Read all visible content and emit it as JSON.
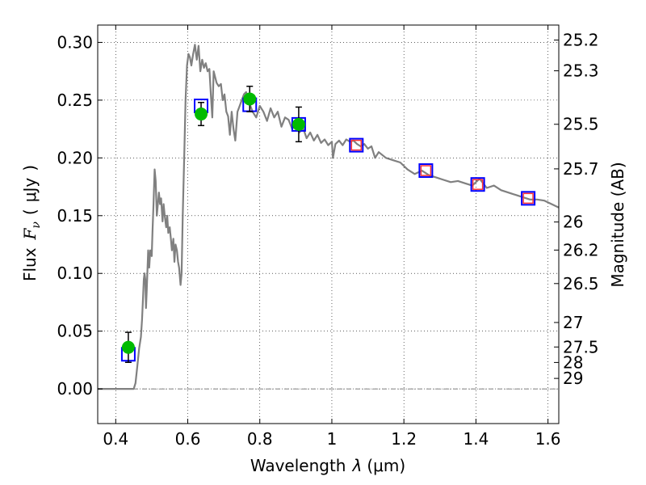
{
  "chart_data": {
    "type": "scatter",
    "xlabel": "Wavelength",
    "xlabel_symbol": "λ",
    "xlabel_unit": "(μm)",
    "ylabel": "Flux",
    "ylabel_symbol": "F",
    "ylabel_symbol_sub": "ν",
    "ylabel_unit_open": "(",
    "ylabel_unit": "μJy",
    "ylabel_unit_close": ")",
    "y2label": "Magnitude (AB)",
    "xlim": [
      0.35,
      1.63
    ],
    "ylim": [
      -0.03,
      0.315
    ],
    "grid": true,
    "xticks": [
      0.4,
      0.6,
      0.8,
      1.0,
      1.2,
      1.4,
      1.6
    ],
    "xtick_labels": [
      "0.4",
      "0.6",
      "0.8",
      "1",
      "1.2",
      "1.4",
      "1.6"
    ],
    "yticks": [
      0.0,
      0.05,
      0.1,
      0.15,
      0.2,
      0.25,
      0.3
    ],
    "ytick_labels": [
      "0.00",
      "0.05",
      "0.10",
      "0.15",
      "0.20",
      "0.25",
      "0.30"
    ],
    "mag_ticks": [
      {
        "label": "25.2",
        "flux": 0.302
      },
      {
        "label": "25.3",
        "flux": 0.2754
      },
      {
        "label": "25.5",
        "flux": 0.2291
      },
      {
        "label": "25.7",
        "flux": 0.1905
      },
      {
        "label": "26",
        "flux": 0.1445
      },
      {
        "label": "26.2",
        "flux": 0.1202
      },
      {
        "label": "26.5",
        "flux": 0.0912
      },
      {
        "label": "27",
        "flux": 0.0575
      },
      {
        "label": "27.5",
        "flux": 0.0363
      },
      {
        "label": "28",
        "flux": 0.0229
      },
      {
        "label": "29",
        "flux": 0.0091
      }
    ],
    "series": [
      {
        "kind": "model_sed",
        "color": "#808080",
        "x": [
          0.35,
          0.45,
          0.455,
          0.46,
          0.465,
          0.47,
          0.473,
          0.476,
          0.478,
          0.48,
          0.482,
          0.484,
          0.486,
          0.49,
          0.493,
          0.496,
          0.5,
          0.502,
          0.505,
          0.508,
          0.511,
          0.514,
          0.517,
          0.52,
          0.523,
          0.526,
          0.53,
          0.533,
          0.536,
          0.54,
          0.543,
          0.546,
          0.55,
          0.553,
          0.556,
          0.56,
          0.563,
          0.566,
          0.57,
          0.573,
          0.576,
          0.58,
          0.583,
          0.586,
          0.59,
          0.594,
          0.598,
          0.602,
          0.606,
          0.61,
          0.615,
          0.62,
          0.625,
          0.63,
          0.635,
          0.64,
          0.645,
          0.65,
          0.655,
          0.66,
          0.664,
          0.668,
          0.672,
          0.676,
          0.68,
          0.686,
          0.692,
          0.697,
          0.702,
          0.707,
          0.712,
          0.717,
          0.722,
          0.727,
          0.732,
          0.738,
          0.744,
          0.75,
          0.756,
          0.762,
          0.768,
          0.774,
          0.78,
          0.79,
          0.8,
          0.81,
          0.82,
          0.83,
          0.84,
          0.85,
          0.86,
          0.87,
          0.88,
          0.89,
          0.9,
          0.91,
          0.92,
          0.93,
          0.94,
          0.95,
          0.96,
          0.97,
          0.98,
          0.99,
          1.0,
          1.003,
          1.01,
          1.02,
          1.03,
          1.04,
          1.05,
          1.06,
          1.07,
          1.08,
          1.09,
          1.1,
          1.11,
          1.12,
          1.13,
          1.15,
          1.17,
          1.19,
          1.21,
          1.23,
          1.25,
          1.27,
          1.29,
          1.31,
          1.33,
          1.35,
          1.37,
          1.39,
          1.41,
          1.43,
          1.45,
          1.47,
          1.49,
          1.51,
          1.53,
          1.55,
          1.57,
          1.59,
          1.61,
          1.63
        ],
        "y": [
          0.0,
          0.0,
          0.005,
          0.02,
          0.035,
          0.045,
          0.06,
          0.08,
          0.095,
          0.1,
          0.095,
          0.07,
          0.085,
          0.12,
          0.105,
          0.12,
          0.115,
          0.135,
          0.16,
          0.19,
          0.18,
          0.15,
          0.16,
          0.17,
          0.16,
          0.165,
          0.145,
          0.16,
          0.15,
          0.14,
          0.15,
          0.135,
          0.14,
          0.13,
          0.12,
          0.13,
          0.11,
          0.125,
          0.12,
          0.11,
          0.105,
          0.09,
          0.1,
          0.15,
          0.2,
          0.25,
          0.28,
          0.29,
          0.287,
          0.28,
          0.29,
          0.298,
          0.285,
          0.297,
          0.275,
          0.285,
          0.278,
          0.282,
          0.275,
          0.277,
          0.255,
          0.235,
          0.275,
          0.27,
          0.265,
          0.262,
          0.264,
          0.25,
          0.255,
          0.24,
          0.236,
          0.22,
          0.24,
          0.225,
          0.215,
          0.24,
          0.245,
          0.25,
          0.255,
          0.257,
          0.25,
          0.245,
          0.24,
          0.235,
          0.245,
          0.24,
          0.232,
          0.243,
          0.235,
          0.24,
          0.227,
          0.235,
          0.233,
          0.225,
          0.23,
          0.222,
          0.226,
          0.217,
          0.222,
          0.215,
          0.22,
          0.213,
          0.216,
          0.211,
          0.214,
          0.2,
          0.212,
          0.215,
          0.211,
          0.216,
          0.214,
          0.215,
          0.212,
          0.21,
          0.212,
          0.208,
          0.21,
          0.2,
          0.205,
          0.2,
          0.198,
          0.196,
          0.19,
          0.186,
          0.189,
          0.185,
          0.183,
          0.181,
          0.179,
          0.18,
          0.178,
          0.176,
          0.182,
          0.174,
          0.176,
          0.172,
          0.17,
          0.168,
          0.166,
          0.164,
          0.164,
          0.163,
          0.16,
          0.157
        ]
      },
      {
        "kind": "model_photometry_blue",
        "color": "#0000ff",
        "marker": "open-square",
        "x": [
          0.435,
          0.637,
          0.772,
          0.908,
          1.068,
          1.261,
          1.405,
          1.545
        ],
        "y": [
          0.03,
          0.245,
          0.246,
          0.229,
          0.211,
          0.189,
          0.177,
          0.165
        ]
      },
      {
        "kind": "model_photometry_red",
        "color": "#ff3333",
        "marker": "open-square",
        "x": [
          1.068,
          1.261,
          1.405,
          1.545
        ],
        "y": [
          0.211,
          0.189,
          0.177,
          0.165
        ]
      },
      {
        "kind": "observed",
        "color": "#00bb00",
        "marker": "filled-circle",
        "x": [
          0.435,
          0.637,
          0.772,
          0.908
        ],
        "y": [
          0.036,
          0.238,
          0.251,
          0.229
        ],
        "err": [
          0.013,
          0.01,
          0.011,
          0.015
        ]
      }
    ]
  }
}
